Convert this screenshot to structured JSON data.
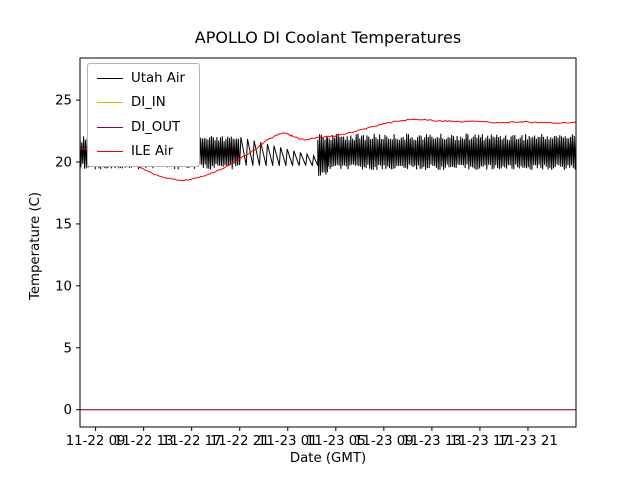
{
  "chart_data": {
    "type": "line",
    "title": "APOLLO DI Coolant Temperatures",
    "xlabel": "Date (GMT)",
    "ylabel": "Temperature (C)",
    "grid": false,
    "legend": {
      "position": "upper left"
    },
    "x_axis": {
      "unit": "hours since 11-22 00:00 GMT",
      "lim": [
        7.7,
        49.0
      ],
      "ticks": [
        {
          "t": 9,
          "label": "11-22 09"
        },
        {
          "t": 13,
          "label": "11-22 13"
        },
        {
          "t": 17,
          "label": "11-22 17"
        },
        {
          "t": 21,
          "label": "11-22 21"
        },
        {
          "t": 25,
          "label": "11-23 01"
        },
        {
          "t": 29,
          "label": "11-23 05"
        },
        {
          "t": 33,
          "label": "11-23 09"
        },
        {
          "t": 37,
          "label": "11-23 13"
        },
        {
          "t": 41,
          "label": "11-23 17"
        },
        {
          "t": 45,
          "label": "11-23 21"
        }
      ]
    },
    "y_axis": {
      "lim": [
        -1.4,
        28.4
      ],
      "ticks": [
        0,
        5,
        10,
        15,
        20,
        25
      ]
    },
    "series": [
      {
        "name": "Utah Air",
        "color": "#000000",
        "pattern": "noisy-square-wave",
        "segments": [
          {
            "mode": "square",
            "from": 7.7,
            "to": 21.0,
            "ymin": 19.4,
            "ymax": 22.1,
            "period": 0.15
          },
          {
            "mode": "sawtooth",
            "from": 21.0,
            "to": 27.5,
            "peak_start": 22.0,
            "peak_end": 20.5,
            "base": 19.7,
            "period": 0.55
          },
          {
            "mode": "square",
            "from": 27.5,
            "to": 28.3,
            "ymin": 18.8,
            "ymax": 22.3,
            "period": 0.15
          },
          {
            "mode": "square",
            "from": 28.3,
            "to": 49.0,
            "ymin": 19.35,
            "ymax": 22.3,
            "period": 0.15
          }
        ]
      },
      {
        "name": "DI_IN",
        "color": "#ffa500",
        "points": [
          [
            7.7,
            0
          ],
          [
            49.0,
            0
          ]
        ]
      },
      {
        "name": "DI_OUT",
        "color": "#800080",
        "points": [
          [
            7.7,
            0
          ],
          [
            49.0,
            0
          ]
        ]
      },
      {
        "name": "ILE Air",
        "color": "#ff0000",
        "jitter": 0.05,
        "points": [
          [
            7.7,
            21.05
          ],
          [
            9,
            21.1
          ],
          [
            10,
            20.8
          ],
          [
            11,
            20.4
          ],
          [
            12,
            19.9
          ],
          [
            13,
            19.4
          ],
          [
            14,
            18.95
          ],
          [
            15,
            18.7
          ],
          [
            15.8,
            18.55
          ],
          [
            16.5,
            18.55
          ],
          [
            17.5,
            18.75
          ],
          [
            18.5,
            19.05
          ],
          [
            19.5,
            19.45
          ],
          [
            20.5,
            19.95
          ],
          [
            21.5,
            20.55
          ],
          [
            22.5,
            21.15
          ],
          [
            23.3,
            21.8
          ],
          [
            24,
            22.15
          ],
          [
            24.7,
            22.35
          ],
          [
            25.3,
            22.15
          ],
          [
            26,
            21.85
          ],
          [
            26.6,
            21.8
          ],
          [
            27.3,
            21.95
          ],
          [
            28.5,
            22.05
          ],
          [
            29.5,
            22.2
          ],
          [
            30.5,
            22.45
          ],
          [
            31.5,
            22.7
          ],
          [
            32.5,
            22.95
          ],
          [
            33.5,
            23.2
          ],
          [
            34.5,
            23.35
          ],
          [
            35.5,
            23.45
          ],
          [
            36.5,
            23.4
          ],
          [
            37.5,
            23.3
          ],
          [
            38.5,
            23.3
          ],
          [
            39.5,
            23.25
          ],
          [
            40.5,
            23.3
          ],
          [
            41.5,
            23.25
          ],
          [
            42.5,
            23.15
          ],
          [
            43.5,
            23.2
          ],
          [
            44.5,
            23.25
          ],
          [
            45.5,
            23.2
          ],
          [
            46.5,
            23.2
          ],
          [
            47.5,
            23.15
          ],
          [
            49,
            23.2
          ]
        ]
      }
    ]
  }
}
